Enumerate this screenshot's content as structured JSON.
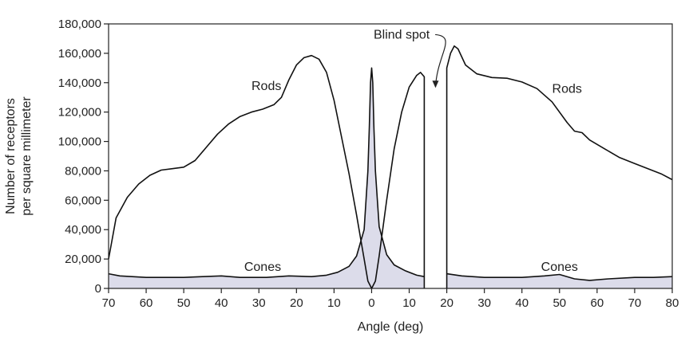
{
  "chart_data": {
    "type": "line",
    "title": "",
    "xlabel": "Angle (deg)",
    "ylabel_lines": [
      "Number of receptors",
      "per square millimeter"
    ],
    "x_tick_labels": [
      "70",
      "60",
      "50",
      "40",
      "30",
      "20",
      "10",
      "0",
      "10",
      "20",
      "30",
      "40",
      "50",
      "60",
      "70",
      "80"
    ],
    "x_tick_values": [
      -70,
      -60,
      -50,
      -40,
      -30,
      -20,
      -10,
      0,
      10,
      20,
      30,
      40,
      50,
      60,
      70,
      80
    ],
    "y_tick_labels": [
      "0",
      "20,000",
      "40,000",
      "60,000",
      "80,000",
      "100,000",
      "120,000",
      "140,000",
      "160,000",
      "180,000"
    ],
    "xlim": [
      -70,
      80
    ],
    "ylim": [
      0,
      180000
    ],
    "grid": false,
    "blind_spot": {
      "x_range": [
        14,
        20
      ],
      "label": "Blind spot"
    },
    "annotations": [
      {
        "text": "Rods",
        "x": -28,
        "y": 135000
      },
      {
        "text": "Rods",
        "x": 52,
        "y": 133000
      },
      {
        "text": "Cones",
        "x": -29,
        "y": 12000
      },
      {
        "text": "Cones",
        "x": 50,
        "y": 12000
      },
      {
        "text": "Blind spot",
        "x": 8,
        "y": 170000
      }
    ],
    "series": [
      {
        "name": "Rods",
        "segments": [
          [
            [
              -70,
              20000
            ],
            [
              -68,
              48000
            ],
            [
              -65,
              62000
            ],
            [
              -62,
              71000
            ],
            [
              -59,
              77000
            ],
            [
              -56,
              80500
            ],
            [
              -53,
              81500
            ],
            [
              -50,
              82500
            ],
            [
              -47,
              87000
            ],
            [
              -44,
              96000
            ],
            [
              -41,
              105000
            ],
            [
              -38,
              112000
            ],
            [
              -35,
              117000
            ],
            [
              -32,
              120000
            ],
            [
              -29,
              122000
            ],
            [
              -26,
              125000
            ],
            [
              -24,
              130000
            ],
            [
              -22,
              142000
            ],
            [
              -20,
              152000
            ],
            [
              -18,
              157000
            ],
            [
              -16,
              158500
            ],
            [
              -14,
              156000
            ],
            [
              -12,
              147000
            ],
            [
              -10,
              128000
            ],
            [
              -8,
              103000
            ],
            [
              -6,
              78000
            ],
            [
              -4,
              50000
            ],
            [
              -2,
              20000
            ],
            [
              -1,
              5000
            ],
            [
              0,
              0
            ],
            [
              1,
              5000
            ],
            [
              2,
              22000
            ],
            [
              4,
              60000
            ],
            [
              6,
              95000
            ],
            [
              8,
              120000
            ],
            [
              10,
              137000
            ],
            [
              12,
              145000
            ],
            [
              13,
              147000
            ],
            [
              14,
              144000
            ],
            [
              14,
              0
            ]
          ],
          [
            [
              20,
              0
            ],
            [
              20,
              150000
            ],
            [
              21,
              160000
            ],
            [
              22,
              165000
            ],
            [
              23,
              163000
            ],
            [
              25,
              152000
            ],
            [
              28,
              146000
            ],
            [
              32,
              143500
            ],
            [
              36,
              143000
            ],
            [
              40,
              140500
            ],
            [
              44,
              136000
            ],
            [
              48,
              127000
            ],
            [
              52,
              113000
            ],
            [
              54,
              107000
            ],
            [
              56,
              106000
            ],
            [
              58,
              101000
            ],
            [
              62,
              95000
            ],
            [
              66,
              89000
            ],
            [
              70,
              85000
            ],
            [
              74,
              81000
            ],
            [
              77,
              78000
            ],
            [
              80,
              74000
            ]
          ]
        ]
      },
      {
        "name": "Cones",
        "segments": [
          [
            [
              -70,
              10000
            ],
            [
              -67,
              8500
            ],
            [
              -60,
              7500
            ],
            [
              -50,
              7500
            ],
            [
              -45,
              8000
            ],
            [
              -40,
              8500
            ],
            [
              -35,
              7500
            ],
            [
              -28,
              7500
            ],
            [
              -22,
              8500
            ],
            [
              -16,
              8000
            ],
            [
              -12,
              9000
            ],
            [
              -9,
              11000
            ],
            [
              -6,
              15000
            ],
            [
              -4,
              22000
            ],
            [
              -2,
              40000
            ],
            [
              -1,
              80000
            ],
            [
              -0.6,
              110000
            ],
            [
              -0.3,
              140000
            ],
            [
              0,
              150000
            ],
            [
              0.3,
              140000
            ],
            [
              0.6,
              110000
            ],
            [
              1,
              80000
            ],
            [
              2,
              42000
            ],
            [
              4,
              23000
            ],
            [
              6,
              16000
            ],
            [
              9,
              12000
            ],
            [
              12,
              9000
            ],
            [
              14,
              8000
            ]
          ],
          [
            [
              20,
              10000
            ],
            [
              24,
              8500
            ],
            [
              30,
              7500
            ],
            [
              40,
              7500
            ],
            [
              46,
              8500
            ],
            [
              50,
              9500
            ],
            [
              54,
              6500
            ],
            [
              58,
              5500
            ],
            [
              63,
              6500
            ],
            [
              70,
              7500
            ],
            [
              75,
              7500
            ],
            [
              80,
              8000
            ]
          ]
        ]
      }
    ]
  }
}
